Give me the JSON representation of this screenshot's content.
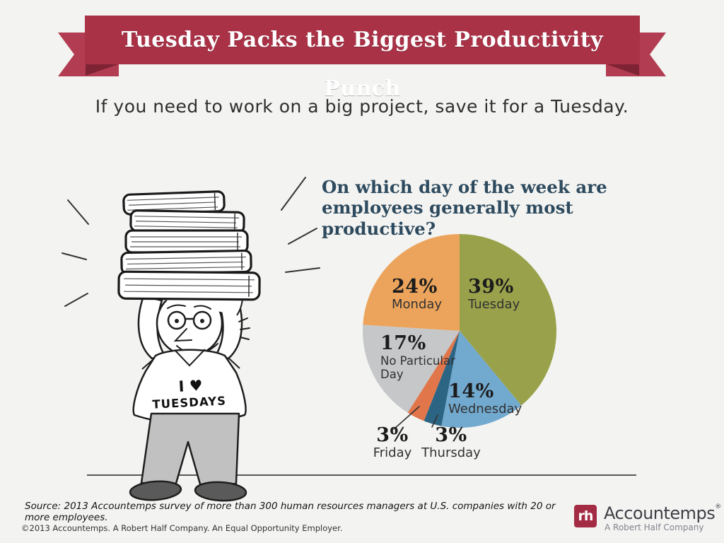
{
  "banner": {
    "title": "Tuesday Packs the Biggest Productivity Punch",
    "ribbon_color": "#a93247",
    "ribbon_tail_color": "#b23c52",
    "ribbon_fold_color": "#7d2333"
  },
  "subtitle": "If you need to work on a big project, save it for a Tuesday.",
  "illustration": {
    "shirt_text_line1": "I ♥",
    "shirt_text_line2": "TUESDAYS"
  },
  "chart_data": {
    "type": "pie",
    "title": "On which day of the week are employees generally most productive?",
    "title_line1": "On which day of the week are",
    "title_line2": "employees generally most productive?",
    "start_angle_deg": 0,
    "direction": "clockwise",
    "legend_position": "labels-on-slices, small slices labeled below with leader lines",
    "slices": [
      {
        "label": "Tuesday",
        "value": 39,
        "pct": "39%",
        "color": "#99a24a"
      },
      {
        "label": "Wednesday",
        "value": 14,
        "pct": "14%",
        "color": "#72a9cf"
      },
      {
        "label": "Thursday",
        "value": 3,
        "pct": "3%",
        "color": "#2c6484"
      },
      {
        "label": "Friday",
        "value": 3,
        "pct": "3%",
        "color": "#e0764a"
      },
      {
        "label": "No Particular Day",
        "value": 17,
        "pct": "17%",
        "color": "#c6c7c9"
      },
      {
        "label": "Monday",
        "value": 24,
        "pct": "24%",
        "color": "#eca45c"
      }
    ]
  },
  "footer": {
    "source": "Source: 2013 Accountemps survey of more than 300 human resources managers at U.S. companies with 20 or more employees.",
    "copyright": "©2013 Accountemps. A Robert Half Company. An Equal Opportunity Employer.",
    "logo": {
      "monogram": "rh",
      "brand": "Accountemps",
      "registered": "®",
      "tagline": "A Robert Half Company",
      "box_color": "#a42b44"
    }
  }
}
